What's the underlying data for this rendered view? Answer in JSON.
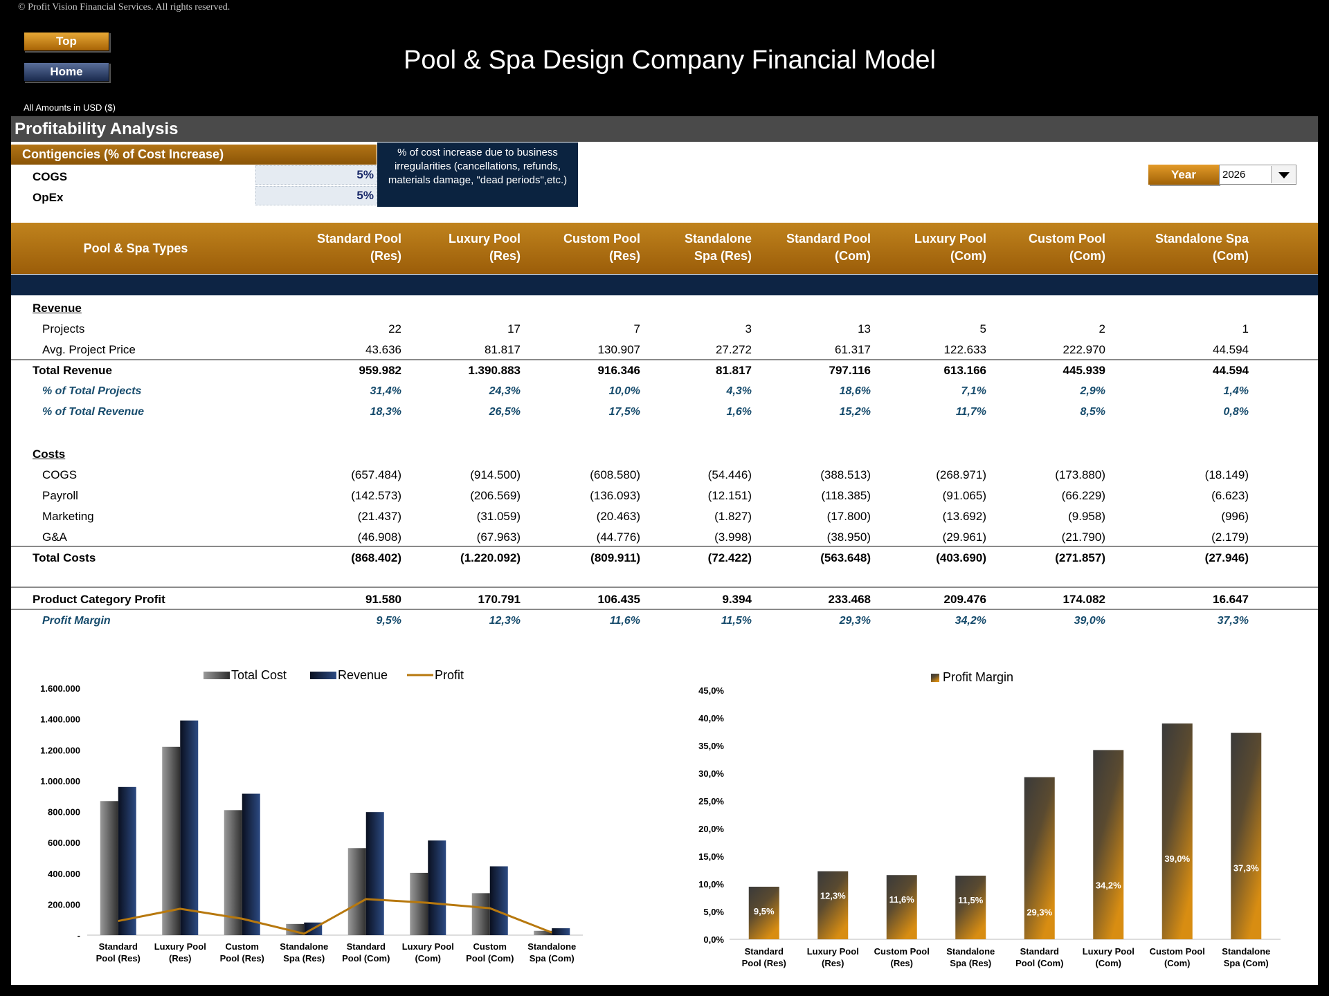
{
  "header": {
    "copyright": "© Profit Vision Financial Services. All rights reserved.",
    "top_btn": "Top",
    "home_btn": "Home",
    "title": "Pool & Spa Design Company Financial Model",
    "amounts": "All Amounts in  USD ($)"
  },
  "section": {
    "title": "Profitability Analysis",
    "contingencies_title": "Contigencies (% of Cost Increase)",
    "cogs_label": "COGS",
    "cogs_value": "5%",
    "opex_label": "OpEx",
    "opex_value": "5%",
    "note": "% of cost increase due to business irregularities (cancellations, refunds, materials damage, \"dead periods\",etc.)",
    "year_label": "Year",
    "year_value": "2026"
  },
  "table": {
    "types_label": "Pool & Spa Types",
    "columns": [
      {
        "l1": "Standard Pool",
        "l2": "(Res)"
      },
      {
        "l1": "Luxury Pool",
        "l2": "(Res)"
      },
      {
        "l1": "Custom Pool",
        "l2": "(Res)"
      },
      {
        "l1": "Standalone",
        "l2": "Spa (Res)"
      },
      {
        "l1": "Standard Pool",
        "l2": "(Com)"
      },
      {
        "l1": "Luxury Pool",
        "l2": "(Com)"
      },
      {
        "l1": "Custom Pool",
        "l2": "(Com)"
      },
      {
        "l1": "Standalone Spa",
        "l2": "(Com)"
      }
    ],
    "revenue_heading": "Revenue",
    "costs_heading": "Costs",
    "rows": {
      "projects": {
        "label": "Projects",
        "values": [
          "22",
          "17",
          "7",
          "3",
          "13",
          "5",
          "2",
          "1"
        ]
      },
      "avg_price": {
        "label": "Avg. Project Price",
        "values": [
          "43.636",
          "81.817",
          "130.907",
          "27.272",
          "61.317",
          "122.633",
          "222.970",
          "44.594"
        ]
      },
      "total_revenue": {
        "label": "Total Revenue",
        "values": [
          "959.982",
          "1.390.883",
          "916.346",
          "81.817",
          "797.116",
          "613.166",
          "445.939",
          "44.594"
        ]
      },
      "pct_projects": {
        "label": "% of Total Projects",
        "values": [
          "31,4%",
          "24,3%",
          "10,0%",
          "4,3%",
          "18,6%",
          "7,1%",
          "2,9%",
          "1,4%"
        ]
      },
      "pct_revenue": {
        "label": "% of Total Revenue",
        "values": [
          "18,3%",
          "26,5%",
          "17,5%",
          "1,6%",
          "15,2%",
          "11,7%",
          "8,5%",
          "0,8%"
        ]
      },
      "cogs": {
        "label": "COGS",
        "values": [
          "(657.484)",
          "(914.500)",
          "(608.580)",
          "(54.446)",
          "(388.513)",
          "(268.971)",
          "(173.880)",
          "(18.149)"
        ]
      },
      "payroll": {
        "label": "Payroll",
        "values": [
          "(142.573)",
          "(206.569)",
          "(136.093)",
          "(12.151)",
          "(118.385)",
          "(91.065)",
          "(66.229)",
          "(6.623)"
        ]
      },
      "marketing": {
        "label": "Marketing",
        "values": [
          "(21.437)",
          "(31.059)",
          "(20.463)",
          "(1.827)",
          "(17.800)",
          "(13.692)",
          "(9.958)",
          "(996)"
        ]
      },
      "ga": {
        "label": "G&A",
        "values": [
          "(46.908)",
          "(67.963)",
          "(44.776)",
          "(3.998)",
          "(38.950)",
          "(29.961)",
          "(21.790)",
          "(2.179)"
        ]
      },
      "total_costs": {
        "label": "Total Costs",
        "values": [
          "(868.402)",
          "(1.220.092)",
          "(809.911)",
          "(72.422)",
          "(563.648)",
          "(403.690)",
          "(271.857)",
          "(27.946)"
        ]
      },
      "profit": {
        "label": "Product Category Profit",
        "values": [
          "91.580",
          "170.791",
          "106.435",
          "9.394",
          "233.468",
          "209.476",
          "174.082",
          "16.647"
        ]
      },
      "margin": {
        "label": "Profit Margin",
        "values": [
          "9,5%",
          "12,3%",
          "11,6%",
          "11,5%",
          "29,3%",
          "34,2%",
          "39,0%",
          "37,3%"
        ]
      }
    }
  },
  "chart_data": [
    {
      "type": "bar",
      "categories": [
        [
          "Standard",
          "Pool (Res)"
        ],
        [
          "Luxury Pool",
          "(Res)"
        ],
        [
          "Custom",
          "Pool (Res)"
        ],
        [
          "Standalone",
          "Spa (Res)"
        ],
        [
          "Standard",
          "Pool (Com)"
        ],
        [
          "Luxury Pool",
          "(Com)"
        ],
        [
          "Custom",
          "Pool (Com)"
        ],
        [
          "Standalone",
          "Spa (Com)"
        ]
      ],
      "series": [
        {
          "name": "Total Cost",
          "kind": "bar",
          "color": "#4a4a4a",
          "values": [
            868402,
            1220092,
            809911,
            72422,
            563648,
            403690,
            271857,
            27946
          ]
        },
        {
          "name": "Revenue",
          "kind": "bar",
          "color": "#1c2d57",
          "values": [
            959982,
            1390883,
            916346,
            81817,
            797116,
            613166,
            445939,
            44594
          ]
        },
        {
          "name": "Profit",
          "kind": "line",
          "color": "#b7780e",
          "values": [
            91580,
            170791,
            106435,
            9394,
            233468,
            209476,
            174082,
            16647
          ]
        }
      ],
      "yticks": [
        "-",
        "200.000",
        "400.000",
        "600.000",
        "800.000",
        "1.000.000",
        "1.200.000",
        "1.400.000",
        "1.600.000"
      ],
      "ylim": [
        0,
        1600000
      ],
      "legend": "top"
    },
    {
      "type": "bar",
      "categories": [
        [
          "Standard",
          "Pool (Res)"
        ],
        [
          "Luxury Pool",
          "(Res)"
        ],
        [
          "Custom Pool",
          "(Res)"
        ],
        [
          "Standalone",
          "Spa (Res)"
        ],
        [
          "Standard",
          "Pool (Com)"
        ],
        [
          "Luxury Pool",
          "(Com)"
        ],
        [
          "Custom Pool",
          "(Com)"
        ],
        [
          "Standalone",
          "Spa (Com)"
        ]
      ],
      "series": [
        {
          "name": "Profit Margin",
          "color": "#b7780e",
          "values": [
            9.5,
            12.3,
            11.6,
            11.5,
            29.3,
            34.2,
            39.0,
            37.3
          ],
          "labels": [
            "9,5%",
            "12,3%",
            "11,6%",
            "11,5%",
            "29,3%",
            "34,2%",
            "39,0%",
            "37,3%"
          ]
        }
      ],
      "yticks": [
        "0,0%",
        "5,0%",
        "10,0%",
        "15,0%",
        "20,0%",
        "25,0%",
        "30,0%",
        "35,0%",
        "40,0%",
        "45,0%"
      ],
      "ylim": [
        0,
        45
      ],
      "legend": "top"
    }
  ]
}
